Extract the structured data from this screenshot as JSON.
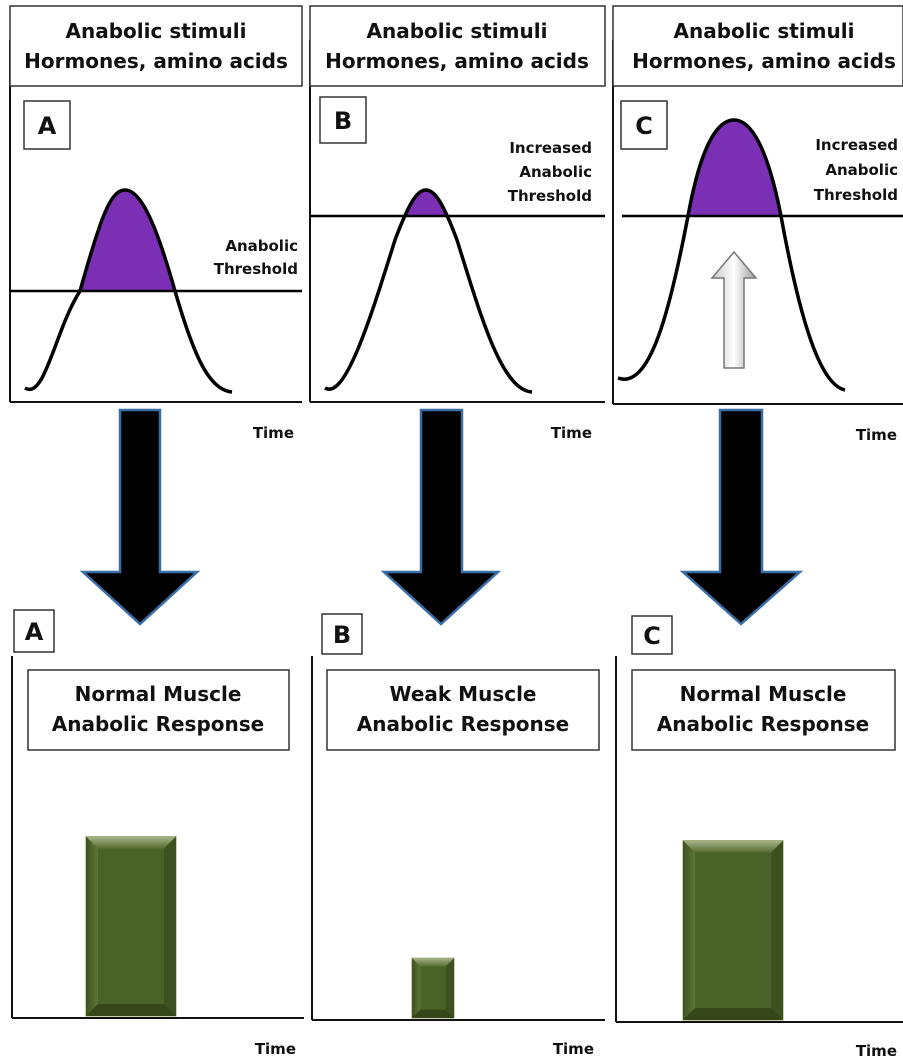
{
  "colors": {
    "curve_fill": "#7a2fb5",
    "bar_fill": "#4a6128",
    "arrow_fill": "#000000",
    "arrow_stroke": "#3a6ea8",
    "up_arrow_fill": "#d9d9d9"
  },
  "panels": [
    {
      "header_line1": "Anabolic  stimuli",
      "header_line2": "Hormones, amino acids",
      "letter": "A",
      "threshold_lines": [
        "",
        "Anabolic",
        "Threshold"
      ],
      "time_label": "Time",
      "response_letter": "A",
      "response_line1": "Normal Muscle",
      "response_line2": "Anabolic Response",
      "response_time_label": "Time",
      "response_level": 0.78
    },
    {
      "header_line1": "Anabolic  stimuli",
      "header_line2": "Hormones, amino acids",
      "letter": "B",
      "threshold_lines": [
        "Increased",
        "Anabolic",
        "Threshold"
      ],
      "time_label": "Time",
      "response_letter": "B",
      "response_line1": "Weak Muscle",
      "response_line2": "Anabolic Response",
      "response_time_label": "Time",
      "response_level": 0.26
    },
    {
      "header_line1": "Anabolic  stimuli",
      "header_line2": "Hormones, amino acids",
      "letter": "C",
      "threshold_lines": [
        "Increased",
        "Anabolic",
        "Threshold"
      ],
      "time_label": "Time",
      "response_letter": "C",
      "response_line1": "Normal Muscle",
      "response_line2": "Anabolic Response",
      "response_time_label": "Time",
      "response_level": 0.78
    }
  ]
}
